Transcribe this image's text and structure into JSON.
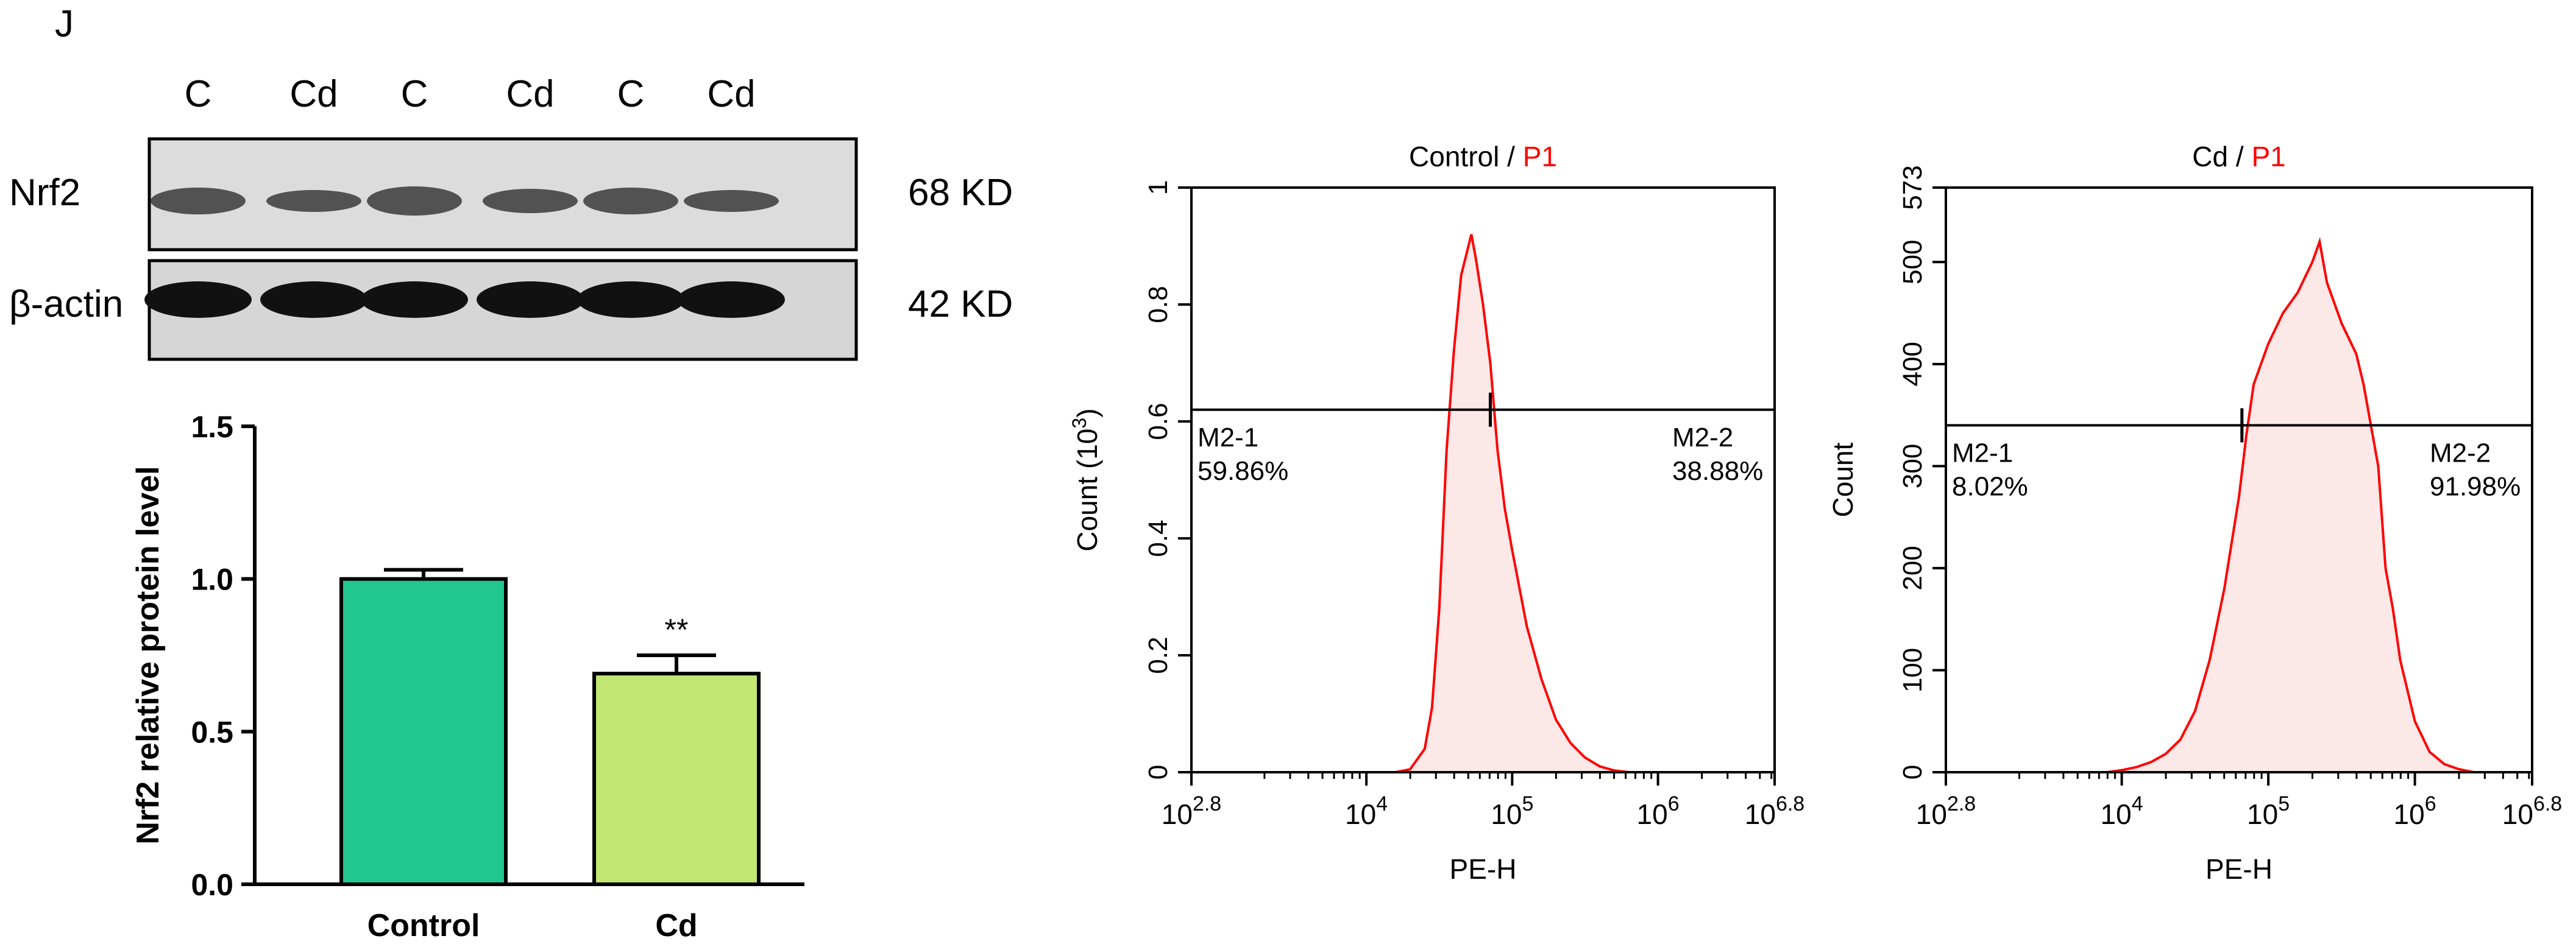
{
  "panel_label": "J",
  "western_blot": {
    "lane_labels": [
      "C",
      "Cd",
      "C",
      "Cd",
      "C",
      "Cd"
    ],
    "rows": [
      {
        "protein": "Nrf2",
        "size": "68 KD"
      },
      {
        "protein": "β-actin",
        "size": "42 KD"
      }
    ]
  },
  "chart_data": [
    {
      "type": "bar",
      "title": "",
      "xlabel": "",
      "ylabel": "Nrf2 relative protein level",
      "categories": [
        "Control",
        "Cd"
      ],
      "values": [
        1.0,
        0.69
      ],
      "errors": [
        0.03,
        0.06
      ],
      "significance": [
        "",
        "**"
      ],
      "colors": [
        "#22c78f",
        "#c1e672"
      ],
      "ylim": [
        0,
        1.5
      ],
      "yticks": [
        "0.0",
        "0.5",
        "1.0",
        "1.5"
      ]
    },
    {
      "type": "area",
      "title_main": "Control / ",
      "title_gate": "P1",
      "xlabel": "PE-H",
      "ylabel": "Count  (10",
      "ylabel_exp": "3",
      "ylabel_close": ")",
      "xscale": "log",
      "xlim": [
        2.8,
        6.8
      ],
      "ylim": [
        0,
        1.0
      ],
      "yticks": [
        "0",
        "0.2",
        "0.4",
        "0.6",
        "0.8",
        "1"
      ],
      "xticks": [
        {
          "base": "10",
          "exp": "2.8"
        },
        {
          "base": "10",
          "exp": "4"
        },
        {
          "base": "10",
          "exp": "5"
        },
        {
          "base": "10",
          "exp": "6"
        },
        {
          "base": "10",
          "exp": "6.8"
        }
      ],
      "gate_y": 0.62,
      "gate_split_log": 4.85,
      "gate_left": {
        "name": "M2-1",
        "pct": "59.86%"
      },
      "gate_right": {
        "name": "M2-2",
        "pct": "38.88%"
      },
      "line_color": "#ff0000",
      "fill_color": "#fde8e8",
      "curve": [
        [
          2.8,
          0
        ],
        [
          4.2,
          0
        ],
        [
          4.3,
          0.005
        ],
        [
          4.4,
          0.04
        ],
        [
          4.45,
          0.11
        ],
        [
          4.5,
          0.28
        ],
        [
          4.55,
          0.55
        ],
        [
          4.6,
          0.72
        ],
        [
          4.65,
          0.85
        ],
        [
          4.7,
          0.9
        ],
        [
          4.72,
          0.92
        ],
        [
          4.75,
          0.88
        ],
        [
          4.8,
          0.8
        ],
        [
          4.85,
          0.7
        ],
        [
          4.9,
          0.55
        ],
        [
          4.95,
          0.45
        ],
        [
          5.0,
          0.38
        ],
        [
          5.1,
          0.25
        ],
        [
          5.2,
          0.16
        ],
        [
          5.3,
          0.09
        ],
        [
          5.4,
          0.05
        ],
        [
          5.5,
          0.025
        ],
        [
          5.6,
          0.01
        ],
        [
          5.7,
          0.003
        ],
        [
          5.8,
          0
        ],
        [
          6.8,
          0
        ]
      ]
    },
    {
      "type": "area",
      "title_main": "Cd / ",
      "title_gate": "P1",
      "xlabel": "PE-H",
      "ylabel": "Count",
      "xscale": "log",
      "xlim": [
        2.8,
        6.8
      ],
      "ylim": [
        0,
        573
      ],
      "yticks": [
        "0",
        "100",
        "200",
        "300",
        "400",
        "500",
        "573"
      ],
      "xticks": [
        {
          "base": "10",
          "exp": "2.8"
        },
        {
          "base": "10",
          "exp": "4"
        },
        {
          "base": "10",
          "exp": "5"
        },
        {
          "base": "10",
          "exp": "6"
        },
        {
          "base": "10",
          "exp": "6.8"
        }
      ],
      "gate_y": 340,
      "gate_split_log": 4.82,
      "gate_left": {
        "name": "M2-1",
        "pct": "8.02%"
      },
      "gate_right": {
        "name": "M2-2",
        "pct": "91.98%"
      },
      "line_color": "#ff0000",
      "fill_color": "#fde8e8",
      "curve": [
        [
          2.8,
          0
        ],
        [
          3.9,
          0
        ],
        [
          4.0,
          2
        ],
        [
          4.1,
          5
        ],
        [
          4.2,
          10
        ],
        [
          4.3,
          18
        ],
        [
          4.4,
          32
        ],
        [
          4.5,
          60
        ],
        [
          4.6,
          110
        ],
        [
          4.7,
          180
        ],
        [
          4.8,
          270
        ],
        [
          4.85,
          330
        ],
        [
          4.9,
          380
        ],
        [
          5.0,
          420
        ],
        [
          5.1,
          450
        ],
        [
          5.2,
          470
        ],
        [
          5.3,
          500
        ],
        [
          5.35,
          520
        ],
        [
          5.4,
          480
        ],
        [
          5.5,
          440
        ],
        [
          5.6,
          410
        ],
        [
          5.65,
          380
        ],
        [
          5.7,
          340
        ],
        [
          5.75,
          300
        ],
        [
          5.8,
          200
        ],
        [
          5.85,
          160
        ],
        [
          5.9,
          110
        ],
        [
          6.0,
          50
        ],
        [
          6.1,
          20
        ],
        [
          6.2,
          8
        ],
        [
          6.3,
          3
        ],
        [
          6.4,
          0
        ],
        [
          6.8,
          0
        ]
      ]
    }
  ]
}
